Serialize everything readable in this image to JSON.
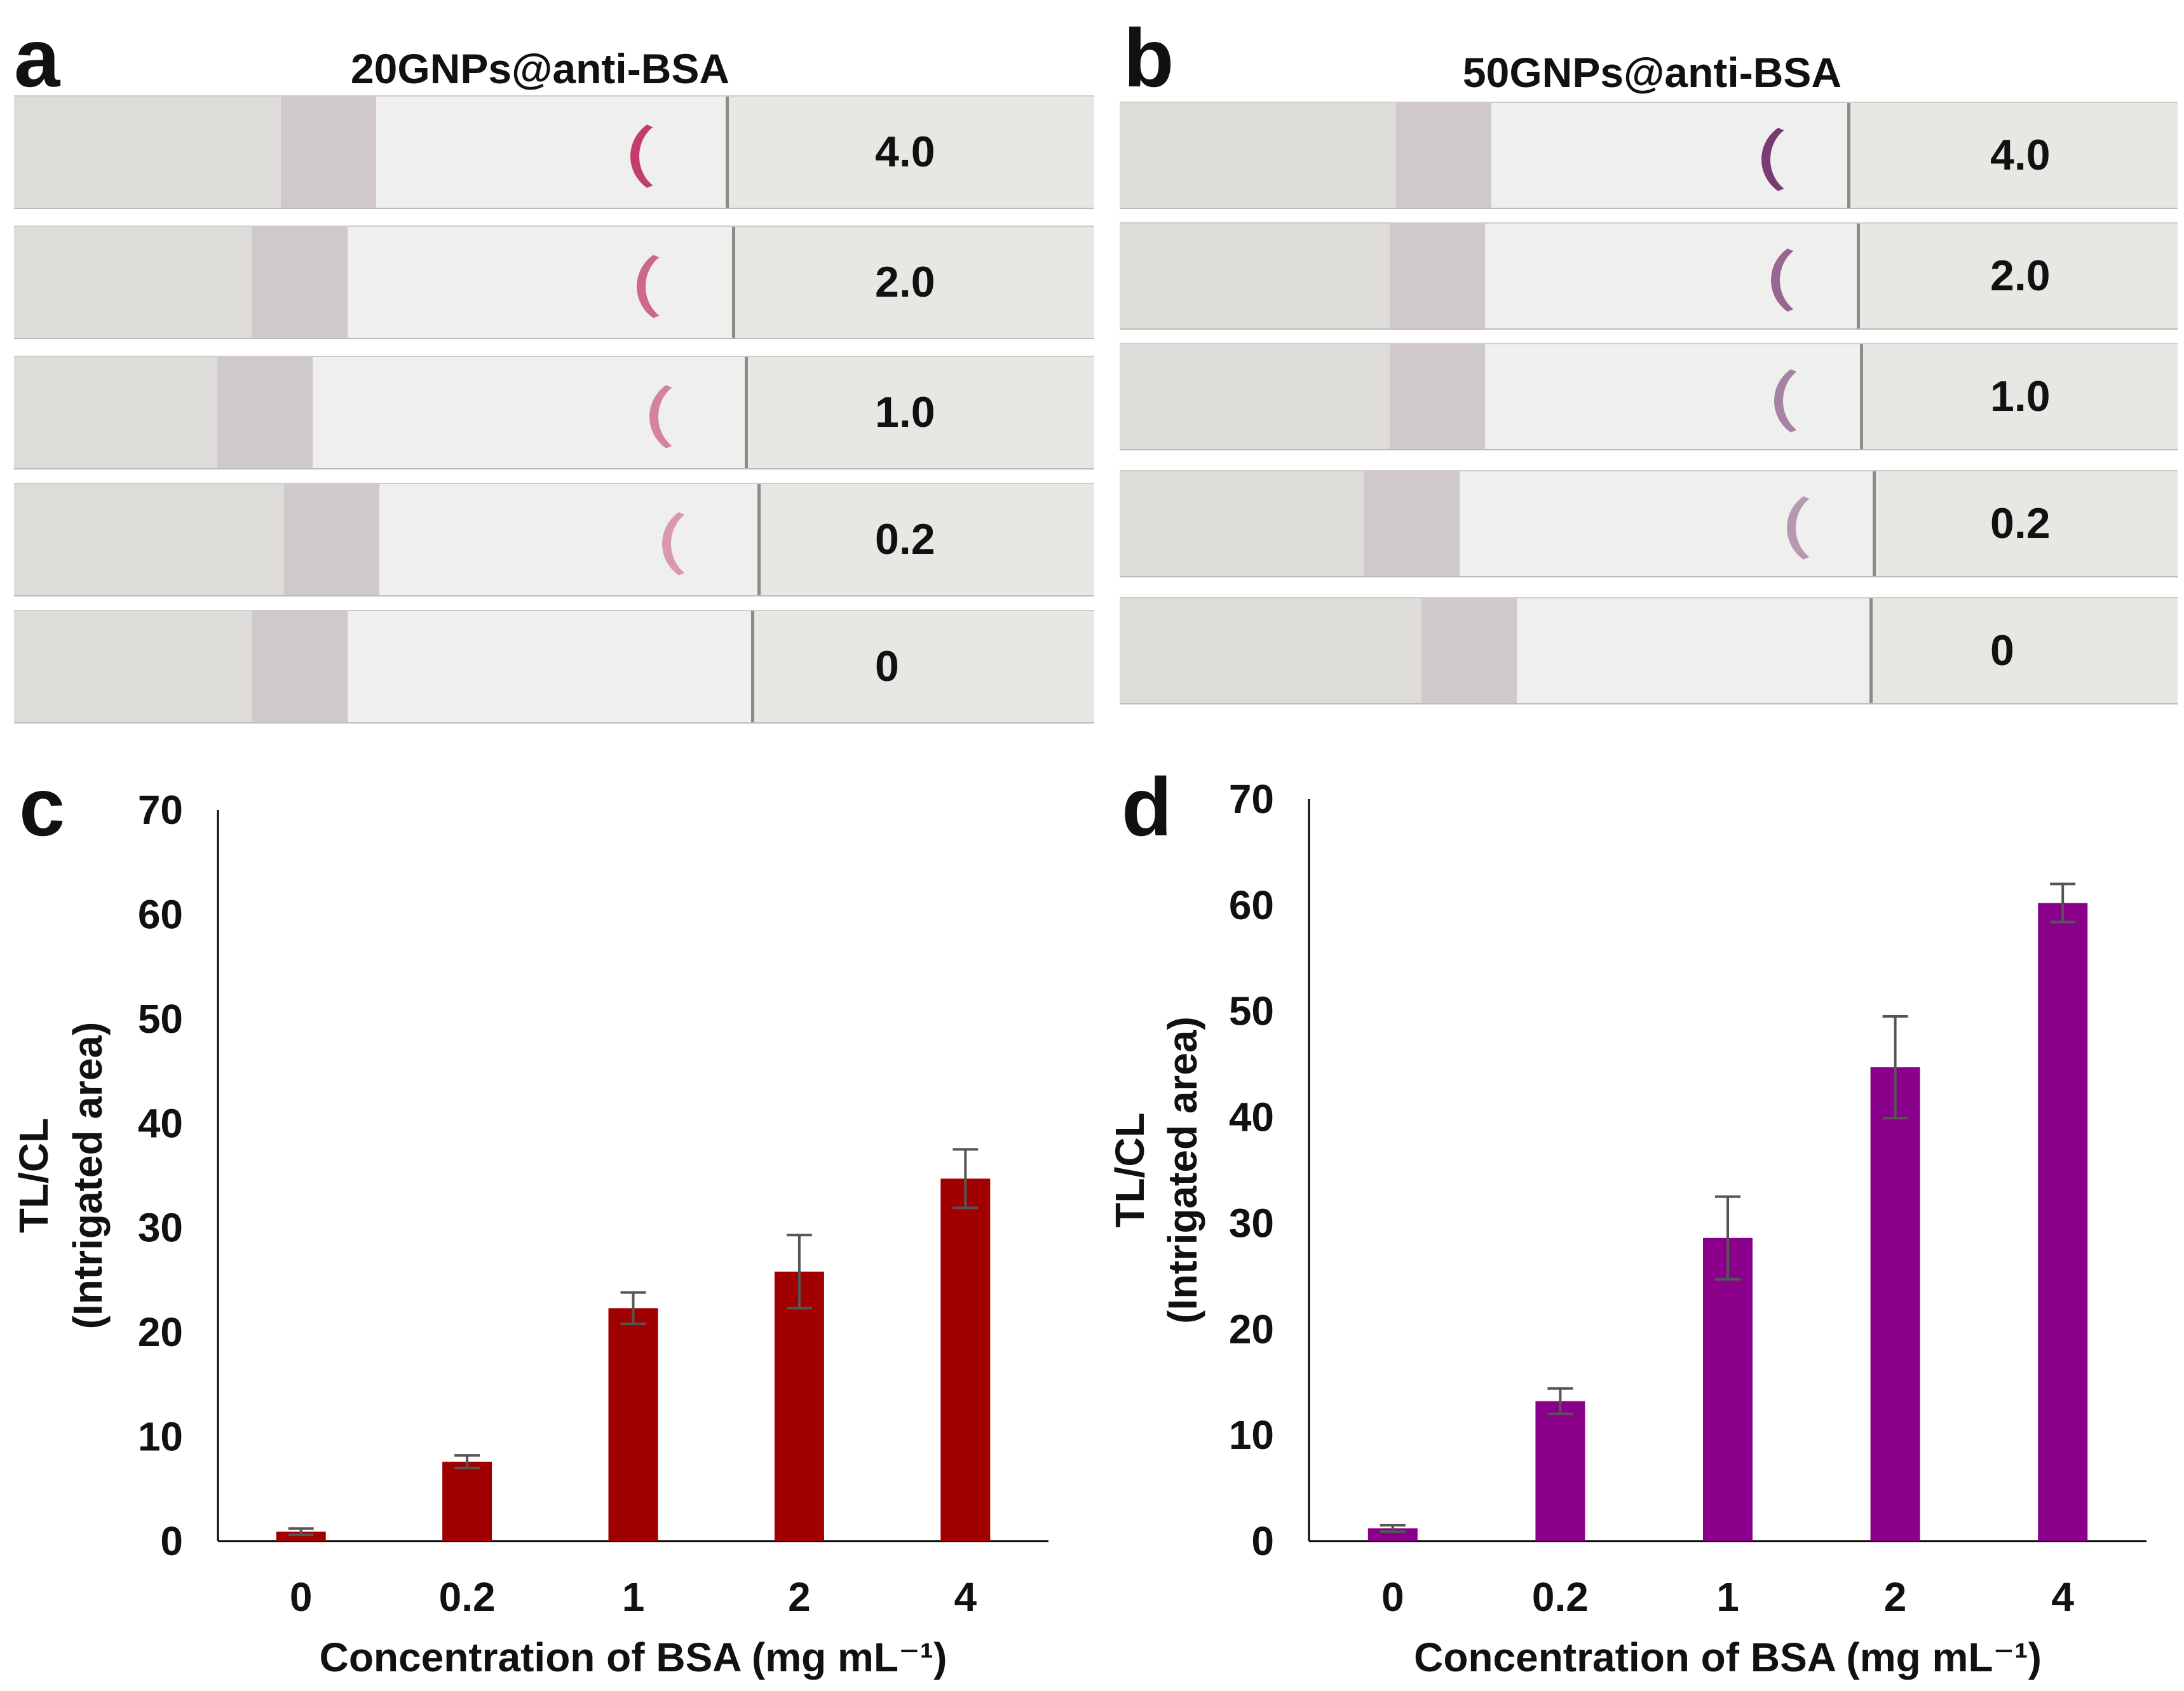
{
  "panels": {
    "a": {
      "letter": "a",
      "title": "20GNPs@anti-BSA",
      "line_color": "#c23c6e",
      "strips": [
        {
          "label": "4.0",
          "intensity": 4.0
        },
        {
          "label": "2.0",
          "intensity": 2.0
        },
        {
          "label": "1.0",
          "intensity": 1.0
        },
        {
          "label": "0.2",
          "intensity": 0.2
        },
        {
          "label": "0",
          "intensity": 0
        }
      ]
    },
    "b": {
      "letter": "b",
      "title": "50GNPs@anti-BSA",
      "line_color": "#7a3a74",
      "strips": [
        {
          "label": "4.0",
          "intensity": 4.0
        },
        {
          "label": "2.0",
          "intensity": 2.0
        },
        {
          "label": "1.0",
          "intensity": 1.0
        },
        {
          "label": "0.2",
          "intensity": 0.2
        },
        {
          "label": "0",
          "intensity": 0
        }
      ]
    },
    "c": {
      "letter": "c"
    },
    "d": {
      "letter": "d"
    }
  },
  "chart_data": [
    {
      "panel": "c",
      "type": "bar",
      "categories": [
        "0",
        "0.2",
        "1",
        "2",
        "4"
      ],
      "values": [
        0.9,
        7.6,
        22.3,
        25.8,
        34.7
      ],
      "errors": [
        0.3,
        0.6,
        1.5,
        3.5,
        2.8
      ],
      "color": "#a10000",
      "ylabel": "TL/CL",
      "ylabel2": "(Intrigated area)",
      "xlabel": "Concentration of BSA (mg mL⁻¹)",
      "ylim": [
        0,
        70
      ],
      "yticks": [
        "0",
        "10",
        "20",
        "30",
        "40",
        "50",
        "60",
        "70"
      ]
    },
    {
      "panel": "d",
      "type": "bar",
      "categories": [
        "0",
        "0.2",
        "1",
        "2",
        "4"
      ],
      "values": [
        1.2,
        13.2,
        28.6,
        44.7,
        60.2
      ],
      "errors": [
        0.3,
        1.2,
        3.9,
        4.8,
        1.8
      ],
      "color": "#8b008b",
      "ylabel": "TL/CL",
      "ylabel2": "(Intrigated area)",
      "xlabel": "Concentration of BSA (mg mL⁻¹)",
      "ylim": [
        0,
        70
      ],
      "yticks": [
        "0",
        "10",
        "20",
        "30",
        "40",
        "50",
        "60",
        "70"
      ]
    }
  ]
}
